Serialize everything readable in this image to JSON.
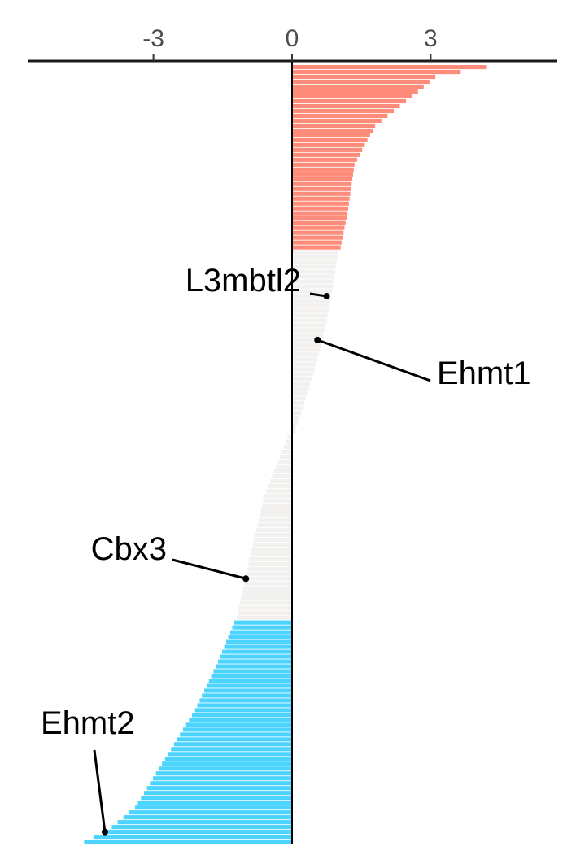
{
  "chart_data": {
    "type": "bar",
    "orientation": "horizontal",
    "title": "",
    "xlabel": "",
    "ylabel": "",
    "xlim": [
      -5.7,
      5.7
    ],
    "x_ticks": [
      {
        "value": -3,
        "label": "-3"
      },
      {
        "value": 0,
        "label": "0"
      },
      {
        "value": 3,
        "label": "3"
      }
    ],
    "grid": false,
    "legend": "none",
    "n_bars": 160,
    "groups": [
      {
        "key": "up",
        "color": "#FF8C7A"
      },
      {
        "key": "ns",
        "color": "#F2F1EF"
      },
      {
        "key": "down",
        "color": "#4CD4FF"
      }
    ],
    "group_sizes": {
      "up": 38,
      "ns": 76,
      "down": 46
    },
    "profile": {
      "up": [
        [
          0,
          4.2
        ],
        [
          2,
          3.1
        ],
        [
          6,
          2.6
        ],
        [
          12,
          1.8
        ],
        [
          20,
          1.35
        ],
        [
          30,
          1.2
        ],
        [
          37,
          1.05
        ]
      ],
      "ns": [
        [
          0,
          1.0
        ],
        [
          12,
          0.8
        ],
        [
          22,
          0.55
        ],
        [
          33,
          0.2
        ],
        [
          37,
          0.05
        ],
        [
          38,
          -0.1
        ],
        [
          50,
          -0.6
        ],
        [
          62,
          -0.9
        ],
        [
          75,
          -1.2
        ]
      ],
      "down": [
        [
          0,
          -1.25
        ],
        [
          8,
          -1.6
        ],
        [
          18,
          -2.1
        ],
        [
          28,
          -2.75
        ],
        [
          38,
          -3.4
        ],
        [
          42,
          -3.9
        ],
        [
          45,
          -4.5
        ]
      ]
    },
    "annotations": [
      {
        "label": "L3mbtl2",
        "value": 0.75,
        "rank": 47
      },
      {
        "label": "Ehmt1",
        "value": 0.55,
        "rank": 56
      },
      {
        "label": "Cbx3",
        "value": -1.0,
        "rank": 105
      },
      {
        "label": "Ehmt2",
        "value": -4.05,
        "rank": 157
      }
    ]
  }
}
